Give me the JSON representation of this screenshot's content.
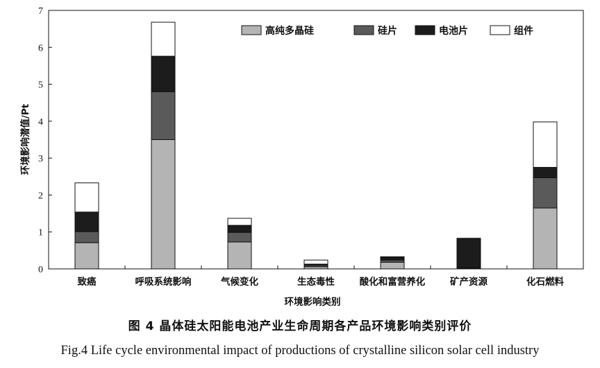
{
  "chart_data": {
    "type": "bar",
    "stacked": true,
    "categories": [
      "致癌",
      "呼吸系统影响",
      "气候变化",
      "生态毒性",
      "酸化和富营养化",
      "矿产资源",
      "化石燃料"
    ],
    "series": [
      {
        "name": "高纯多晶硅",
        "color": "#b4b4b4",
        "values": [
          0.71,
          3.5,
          0.73,
          0.06,
          0.18,
          0.02,
          1.65
        ]
      },
      {
        "name": "硅片",
        "color": "#5a5a5a",
        "values": [
          0.3,
          1.3,
          0.26,
          0.04,
          0.06,
          0.01,
          0.82
        ]
      },
      {
        "name": "电池片",
        "color": "#1c1c1c",
        "values": [
          0.53,
          0.96,
          0.19,
          0.03,
          0.07,
          0.8,
          0.28
        ]
      },
      {
        "name": "组件",
        "color": "#ffffff",
        "values": [
          0.79,
          0.92,
          0.19,
          0.11,
          0.02,
          0.0,
          1.23
        ]
      }
    ],
    "xlabel": "环境影响类别",
    "ylabel": "环境影响潜值/Pt",
    "ylim": [
      0,
      7
    ],
    "yticks": [
      0,
      1,
      2,
      3,
      4,
      5,
      6,
      7
    ],
    "grid": false,
    "legend_position": "top-right"
  },
  "captions": {
    "cn": "图 4    晶体硅太阳能电池产业生命周期各产品环境影响类别评价",
    "en": "Fig.4 Life cycle environmental impact of productions of crystalline silicon solar cell industry"
  }
}
